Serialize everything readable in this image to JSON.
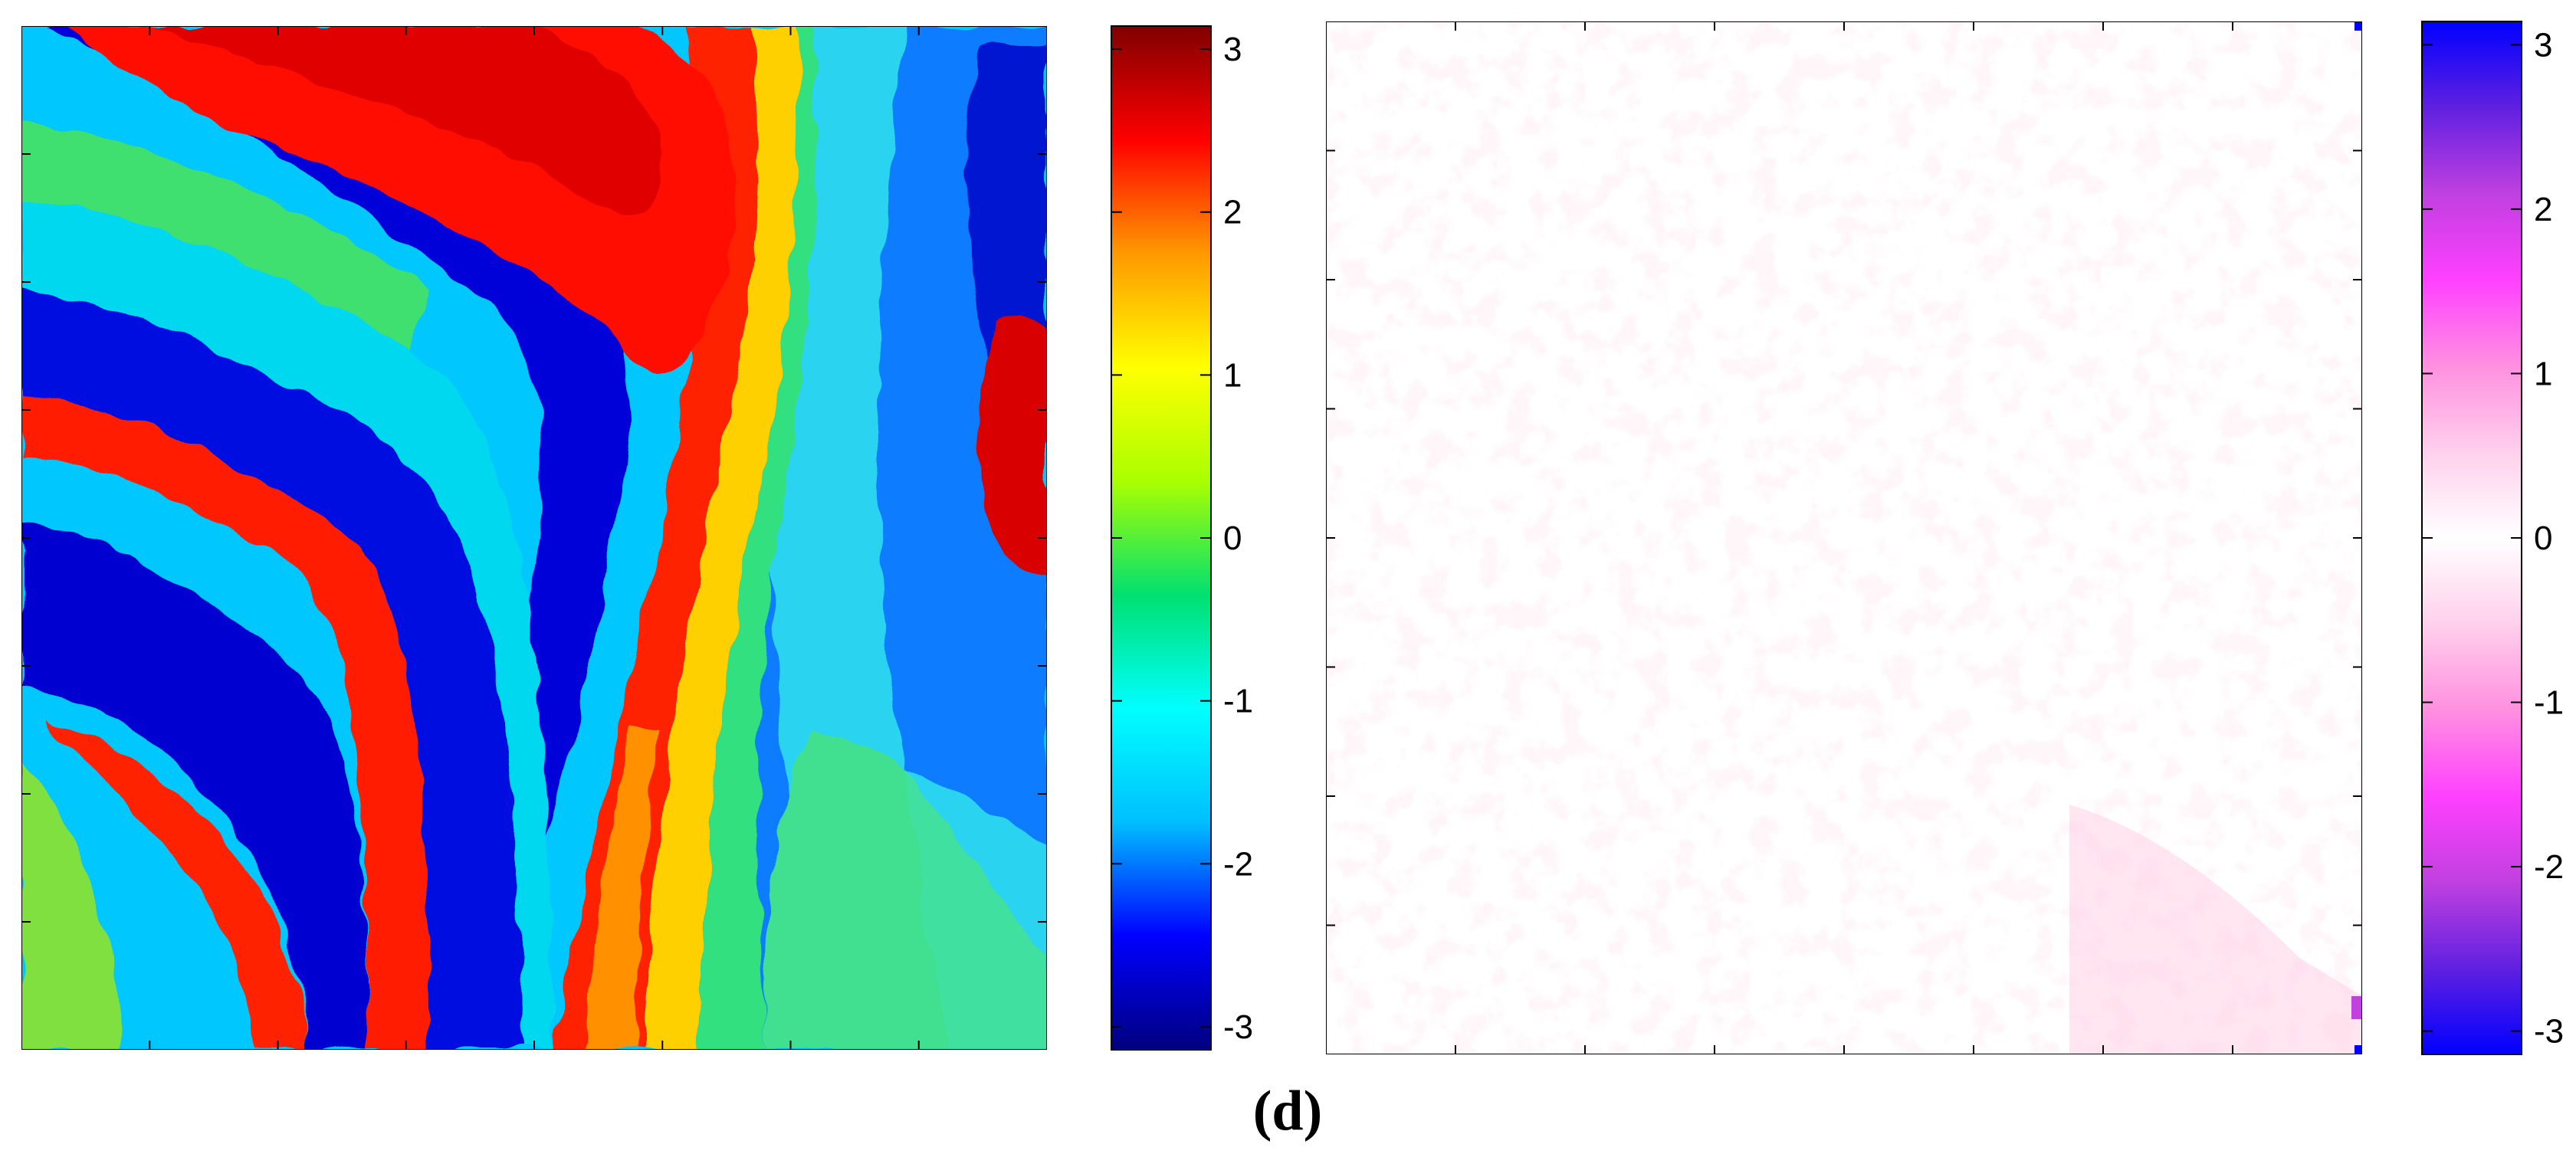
{
  "caption": "(d)",
  "chart_data": [
    {
      "type": "heatmap",
      "name": "wrapped-phase-map",
      "colormap": "jet",
      "colorbar": {
        "range": [
          -3.1416,
          3.1416
        ],
        "ticks": [
          3,
          2,
          1,
          0,
          -1,
          -2,
          -3
        ],
        "tick_labels": [
          "3",
          "2",
          "1",
          "0",
          "-1",
          "-2",
          "-3"
        ],
        "stops": [
          "#000080",
          "#0000ff",
          "#00bfff",
          "#00ffff",
          "#00e070",
          "#aaff00",
          "#ffff00",
          "#ff9900",
          "#ff0000",
          "#800000"
        ]
      },
      "x_ticks": 7,
      "y_ticks": 7
    },
    {
      "type": "heatmap",
      "name": "phase-error-map",
      "colormap": "blue-magenta-white",
      "colorbar": {
        "range": [
          -3.1416,
          3.1416
        ],
        "ticks": [
          3,
          2,
          1,
          0,
          -1,
          -2,
          -3
        ],
        "tick_labels": [
          "3",
          "2",
          "1",
          "0",
          "-1",
          "-2",
          "-3"
        ],
        "stops": [
          "#0000ff",
          "#6020e0",
          "#c040e0",
          "#ff40ff",
          "#ff90e0",
          "#ffd0ec",
          "#ffffff",
          "#ffd0ec",
          "#ff90e0",
          "#ff40ff",
          "#c040e0",
          "#6020e0",
          "#0000ff"
        ]
      },
      "x_ticks": 7,
      "y_ticks": 7
    }
  ]
}
